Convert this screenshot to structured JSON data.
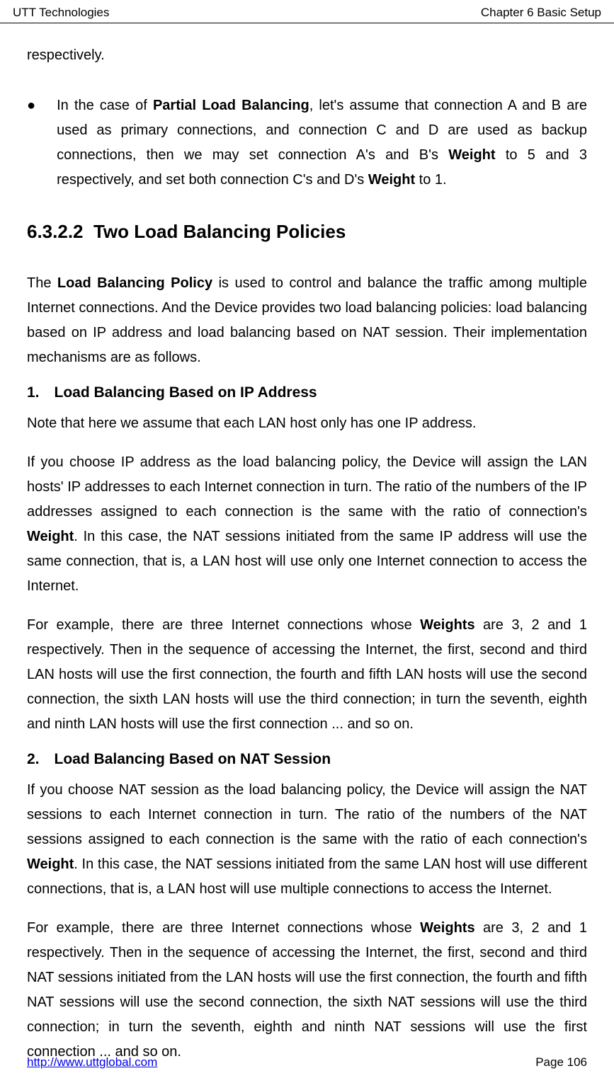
{
  "header": {
    "left": "UTT Technologies",
    "right": "Chapter 6 Basic Setup"
  },
  "content": {
    "first_word": "respectively.",
    "bullet": {
      "marker": "●",
      "text_before_bold1": "In the case of ",
      "bold1": "Partial Load Balancing",
      "text_mid1": ", let's assume that connection A and B are used as primary connections, and connection C and D are used as backup connections, then we may set connection A's and B's ",
      "bold2": "Weight",
      "text_mid2": " to 5 and 3 respectively, and set both connection C's and D's ",
      "bold3": "Weight",
      "text_end": " to 1."
    },
    "section": {
      "number": "6.3.2.2",
      "title": "Two Load Balancing Policies"
    },
    "intro": {
      "text_before": "The ",
      "bold1": "Load Balancing Policy",
      "text_after": " is used to control and balance the traffic among multiple Internet connections. And the Device provides two load balancing policies: load balancing based on IP address and load balancing based on NAT session. Their implementation mechanisms are as follows."
    },
    "sub1": {
      "heading": "1. Load Balancing Based on IP Address",
      "p1": "Note that here we assume that each LAN host only has one IP address.",
      "p2_before": "If you choose IP address as the load balancing policy, the Device will assign the LAN hosts' IP addresses to each Internet connection in turn. The ratio of the numbers of the IP addresses assigned to each connection is the same with the ratio of connection's ",
      "p2_bold": "Weight",
      "p2_after": ". In this case, the NAT sessions initiated from the same IP address will use the same connection, that is, a LAN host will use only one Internet connection to access the Internet.",
      "p3_before": "For example, there are three Internet connections whose ",
      "p3_bold": "Weights",
      "p3_after": " are 3, 2 and 1 respectively. Then in the sequence of accessing the Internet, the first, second and third LAN hosts will use the first connection, the fourth and fifth LAN hosts will use the second connection, the sixth LAN hosts will use the third connection; in turn the seventh, eighth and ninth LAN hosts will use the first connection ... and so on."
    },
    "sub2": {
      "heading": "2. Load Balancing Based on NAT Session",
      "p1_before": "If you choose NAT session as the load balancing policy, the Device will assign the NAT sessions to each Internet connection in turn. The ratio of the numbers of the NAT sessions assigned to each connection is the same with the ratio of each connection's ",
      "p1_bold": "Weight",
      "p1_after": ". In this case, the NAT sessions initiated from the same LAN host will use different connections, that is, a LAN host will use multiple connections to access the Internet.",
      "p2_before": "For example, there are three Internet connections whose ",
      "p2_bold": "Weights",
      "p2_after": " are 3, 2 and 1 respectively. Then in the sequence of accessing the Internet, the first, second and third NAT sessions initiated from the LAN hosts will use the first connection, the fourth and fifth NAT sessions will use the second connection, the sixth NAT sessions will use the third connection; in turn the seventh, eighth and ninth NAT sessions will use the first connection ... and so on."
    }
  },
  "footer": {
    "left": "http://www.uttglobal.com",
    "right": "Page 106"
  },
  "colors": {
    "text": "#000000",
    "background": "#ffffff",
    "link": "#0000ee",
    "border": "#000000"
  },
  "typography": {
    "body_fontsize": 20,
    "heading_fontsize": 26,
    "subheading_fontsize": 21,
    "header_footer_fontsize": 17,
    "line_height": 1.75
  }
}
